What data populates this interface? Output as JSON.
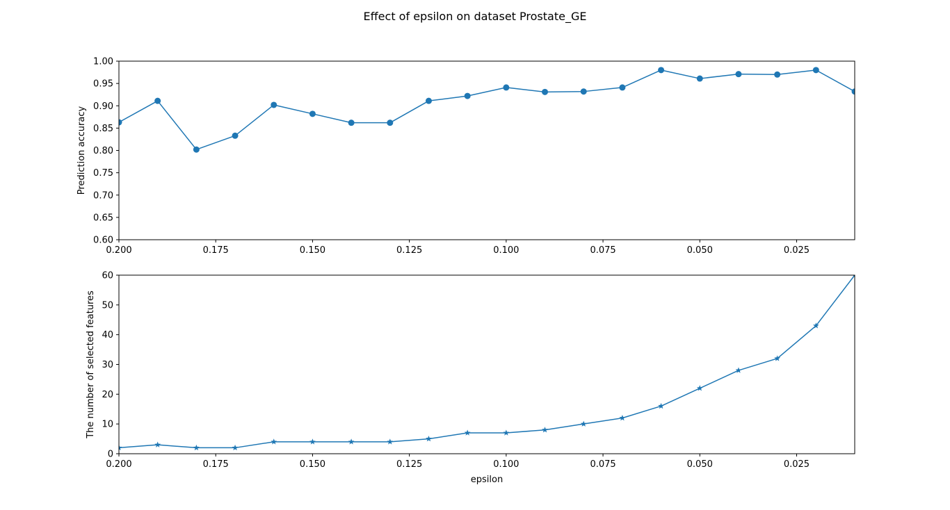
{
  "figure": {
    "title": "Effect of epsilon on dataset Prostate_GE"
  },
  "chart_data": [
    {
      "type": "line",
      "title": "",
      "xlabel": "",
      "ylabel": "Prediction accuracy",
      "xlim": [
        0.2,
        0.01
      ],
      "ylim": [
        0.6,
        1.0
      ],
      "x_inverted": true,
      "grid": false,
      "marker": "circle",
      "color": "#1f77b4",
      "x_ticks": [
        0.2,
        0.175,
        0.15,
        0.125,
        0.1,
        0.075,
        0.05,
        0.025
      ],
      "x_tick_labels": [
        "0.200",
        "0.175",
        "0.150",
        "0.125",
        "0.100",
        "0.075",
        "0.050",
        "0.025"
      ],
      "y_ticks": [
        0.6,
        0.65,
        0.7,
        0.75,
        0.8,
        0.85,
        0.9,
        0.95,
        1.0
      ],
      "y_tick_labels": [
        "0.60",
        "0.65",
        "0.70",
        "0.75",
        "0.80",
        "0.85",
        "0.90",
        "0.95",
        "1.00"
      ],
      "x": [
        0.2,
        0.19,
        0.18,
        0.17,
        0.16,
        0.15,
        0.14,
        0.13,
        0.12,
        0.11,
        0.1,
        0.09,
        0.08,
        0.07,
        0.06,
        0.05,
        0.04,
        0.03,
        0.02,
        0.01
      ],
      "y": [
        0.863,
        0.911,
        0.802,
        0.833,
        0.902,
        0.882,
        0.862,
        0.862,
        0.911,
        0.922,
        0.941,
        0.931,
        0.932,
        0.941,
        0.98,
        0.961,
        0.971,
        0.97,
        0.98,
        0.932
      ]
    },
    {
      "type": "line",
      "title": "",
      "xlabel": "epsilon",
      "ylabel": "The number of selected features",
      "xlim": [
        0.2,
        0.01
      ],
      "ylim": [
        0,
        60
      ],
      "x_inverted": true,
      "grid": false,
      "marker": "star",
      "color": "#1f77b4",
      "x_ticks": [
        0.2,
        0.175,
        0.15,
        0.125,
        0.1,
        0.075,
        0.05,
        0.025
      ],
      "x_tick_labels": [
        "0.200",
        "0.175",
        "0.150",
        "0.125",
        "0.100",
        "0.075",
        "0.050",
        "0.025"
      ],
      "y_ticks": [
        0,
        10,
        20,
        30,
        40,
        50,
        60
      ],
      "y_tick_labels": [
        "0",
        "10",
        "20",
        "30",
        "40",
        "50",
        "60"
      ],
      "x": [
        0.2,
        0.19,
        0.18,
        0.17,
        0.16,
        0.15,
        0.14,
        0.13,
        0.12,
        0.11,
        0.1,
        0.09,
        0.08,
        0.07,
        0.06,
        0.05,
        0.04,
        0.03,
        0.02,
        0.01
      ],
      "y": [
        2,
        3,
        2,
        2,
        4,
        4,
        4,
        4,
        5,
        7,
        7,
        8,
        10,
        12,
        16,
        22,
        28,
        32,
        43,
        60
      ]
    }
  ]
}
